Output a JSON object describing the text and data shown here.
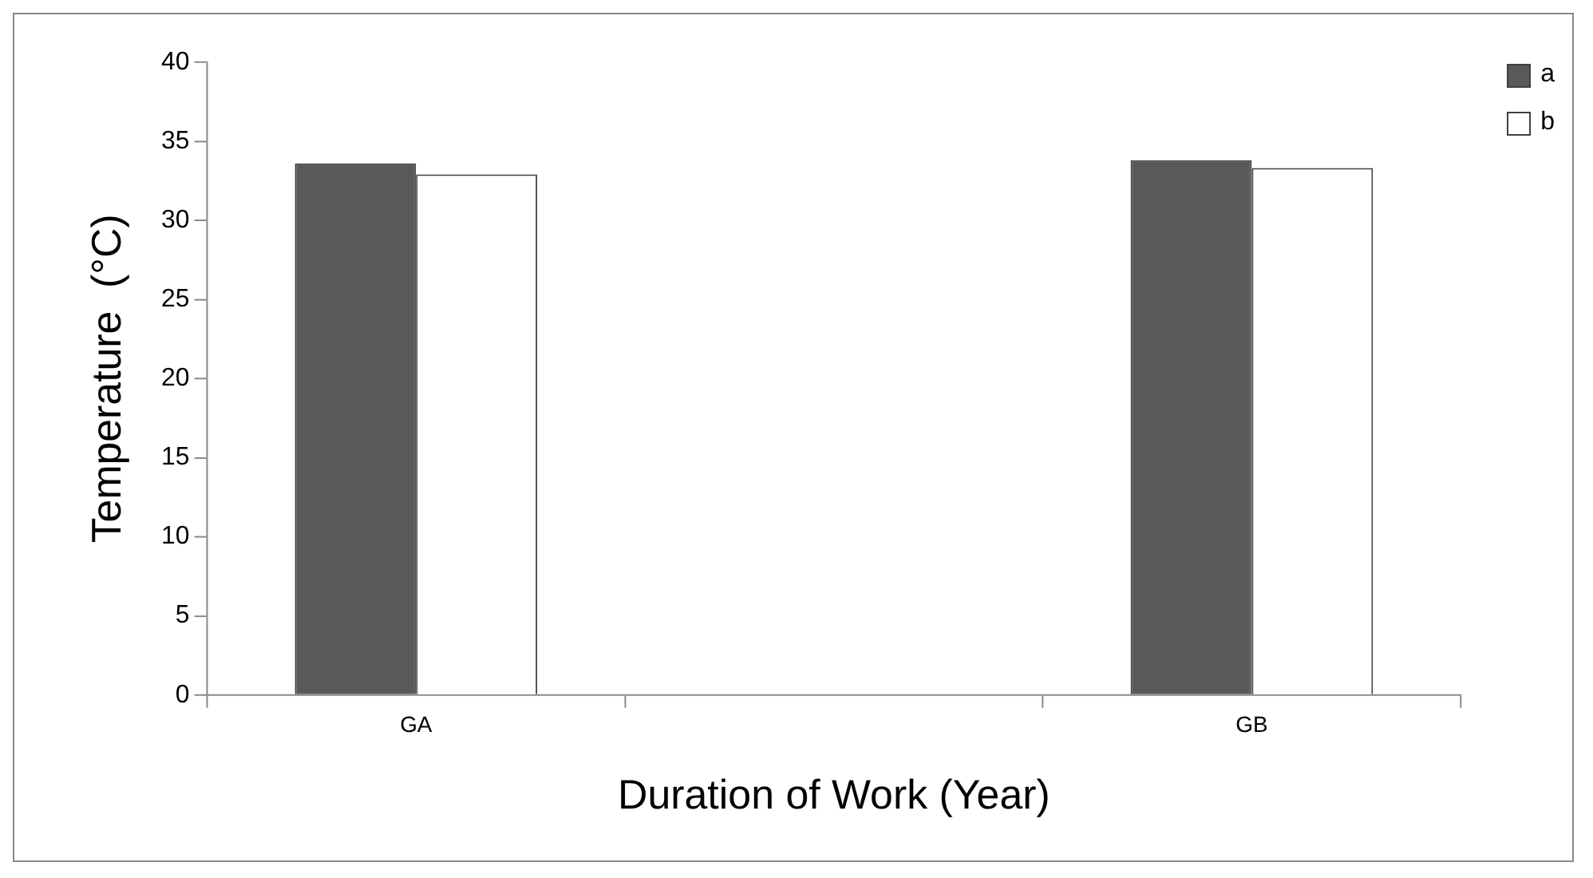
{
  "chart_data": {
    "type": "bar",
    "xlabel": "Duration of Work (Year)",
    "ylabel": "Temperature  (°C)",
    "categories": [
      "GA",
      null,
      "GB"
    ],
    "series": [
      {
        "name": "a",
        "color": "#595959",
        "values": [
          33.6,
          null,
          33.8
        ]
      },
      {
        "name": "b",
        "color": "#ffffff",
        "values": [
          32.9,
          null,
          33.3
        ]
      }
    ],
    "ylim": [
      0,
      40
    ],
    "yticks": [
      0,
      5,
      10,
      15,
      20,
      25,
      30,
      35,
      40
    ],
    "grid": false,
    "legend": "top right"
  }
}
